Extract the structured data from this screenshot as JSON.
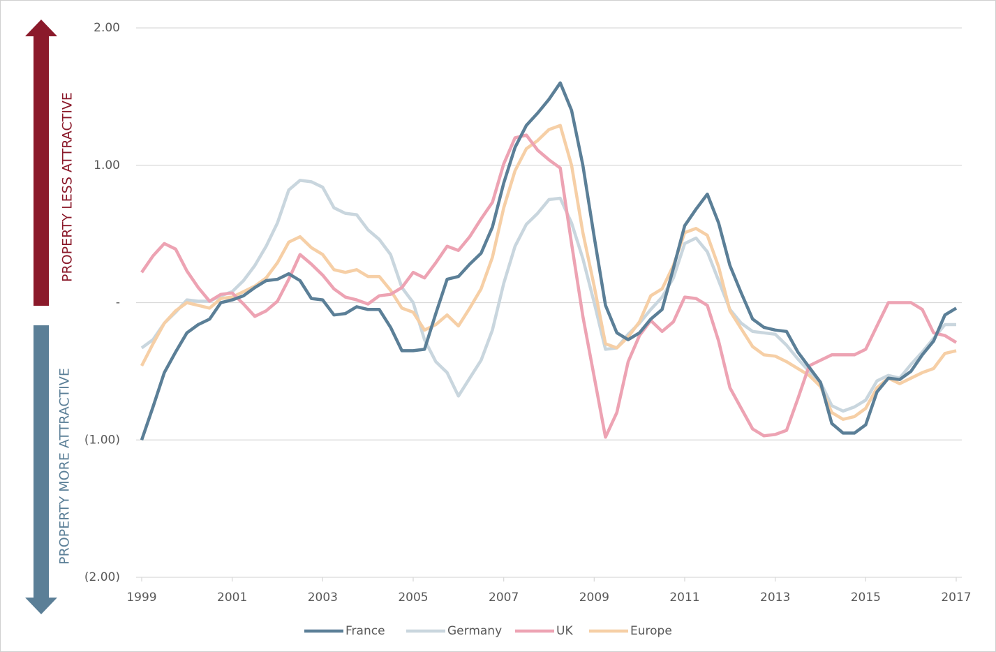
{
  "chart_data": {
    "type": "line",
    "annotations": [
      "PROPERTY LESS ATTRACTIVE",
      "PROPERTY MORE ATTRACTIVE"
    ],
    "x": [
      1999,
      1999.25,
      1999.5,
      1999.75,
      2000,
      2000.25,
      2000.5,
      2000.75,
      2001,
      2001.25,
      2001.5,
      2001.75,
      2002,
      2002.25,
      2002.5,
      2002.75,
      2003,
      2003.25,
      2003.5,
      2003.75,
      2004,
      2004.25,
      2004.5,
      2004.75,
      2005,
      2005.25,
      2005.5,
      2005.75,
      2006,
      2006.25,
      2006.5,
      2006.75,
      2007,
      2007.25,
      2007.5,
      2007.75,
      2008,
      2008.25,
      2008.5,
      2008.75,
      2009,
      2009.25,
      2009.5,
      2009.75,
      2010,
      2010.25,
      2010.5,
      2010.75,
      2011,
      2011.25,
      2011.5,
      2011.75,
      2012,
      2012.25,
      2012.5,
      2012.75,
      2013,
      2013.25,
      2013.5,
      2013.75,
      2014,
      2014.25,
      2014.5,
      2014.75,
      2015,
      2015.25,
      2015.5,
      2015.75,
      2016,
      2016.25,
      2016.5,
      2016.75,
      2017
    ],
    "xlim": [
      1999,
      2017
    ],
    "xticks": [
      1999,
      2001,
      2003,
      2005,
      2007,
      2009,
      2011,
      2013,
      2015,
      2017
    ],
    "ylim": [
      -2,
      2
    ],
    "yticks": [
      {
        "value": 2,
        "label": "2.00"
      },
      {
        "value": 1,
        "label": "1.00"
      },
      {
        "value": 0,
        "label": "-"
      },
      {
        "value": -1,
        "label": "(1.00)"
      },
      {
        "value": -2,
        "label": "(2.00)"
      }
    ],
    "grid": true,
    "legend": "bottom",
    "series": [
      {
        "name": "France",
        "color": "#5b7f97",
        "values": [
          -1.0,
          -0.76,
          -0.51,
          -0.36,
          -0.22,
          -0.16,
          -0.12,
          0.0,
          0.02,
          0.05,
          0.11,
          0.16,
          0.17,
          0.21,
          0.16,
          0.03,
          0.02,
          -0.09,
          -0.08,
          -0.03,
          -0.05,
          -0.05,
          -0.18,
          -0.35,
          -0.35,
          -0.34,
          -0.08,
          0.17,
          0.19,
          0.28,
          0.36,
          0.55,
          0.87,
          1.13,
          1.29,
          1.38,
          1.48,
          1.6,
          1.4,
          1.0,
          0.48,
          -0.02,
          -0.22,
          -0.27,
          -0.22,
          -0.12,
          -0.05,
          0.25,
          0.56,
          0.68,
          0.79,
          0.58,
          0.27,
          0.07,
          -0.12,
          -0.18,
          -0.2,
          -0.21,
          -0.36,
          -0.47,
          -0.58,
          -0.88,
          -0.95,
          -0.95,
          -0.89,
          -0.65,
          -0.55,
          -0.56,
          -0.5,
          -0.38,
          -0.28,
          -0.09,
          -0.04
        ]
      },
      {
        "name": "Germany",
        "color": "#c9d6de",
        "values": [
          -0.33,
          -0.27,
          -0.15,
          -0.07,
          0.02,
          0.01,
          0.01,
          0.05,
          0.08,
          0.16,
          0.27,
          0.41,
          0.58,
          0.82,
          0.89,
          0.88,
          0.84,
          0.69,
          0.65,
          0.64,
          0.53,
          0.46,
          0.35,
          0.11,
          0.0,
          -0.27,
          -0.43,
          -0.51,
          -0.68,
          -0.55,
          -0.42,
          -0.2,
          0.14,
          0.41,
          0.57,
          0.65,
          0.75,
          0.76,
          0.58,
          0.32,
          0.0,
          -0.34,
          -0.33,
          -0.23,
          -0.15,
          -0.05,
          0.04,
          0.18,
          0.43,
          0.47,
          0.37,
          0.16,
          -0.05,
          -0.15,
          -0.21,
          -0.22,
          -0.23,
          -0.31,
          -0.41,
          -0.5,
          -0.58,
          -0.75,
          -0.79,
          -0.76,
          -0.71,
          -0.57,
          -0.53,
          -0.55,
          -0.45,
          -0.36,
          -0.26,
          -0.16,
          -0.16
        ]
      },
      {
        "name": "UK",
        "color": "#eda3b3",
        "values": [
          0.22,
          0.34,
          0.43,
          0.39,
          0.23,
          0.11,
          0.01,
          0.06,
          0.07,
          -0.01,
          -0.1,
          -0.06,
          0.01,
          0.17,
          0.35,
          0.28,
          0.2,
          0.1,
          0.04,
          0.02,
          -0.01,
          0.05,
          0.06,
          0.11,
          0.22,
          0.18,
          0.29,
          0.41,
          0.38,
          0.48,
          0.61,
          0.73,
          1.01,
          1.2,
          1.22,
          1.11,
          1.04,
          0.98,
          0.43,
          -0.1,
          -0.54,
          -0.98,
          -0.8,
          -0.43,
          -0.24,
          -0.13,
          -0.21,
          -0.14,
          0.04,
          0.03,
          -0.02,
          -0.28,
          -0.62,
          -0.77,
          -0.92,
          -0.97,
          -0.96,
          -0.93,
          -0.7,
          -0.46,
          -0.42,
          -0.38,
          -0.38,
          -0.38,
          -0.34,
          -0.17,
          0.0,
          0.0,
          0.0,
          -0.05,
          -0.22,
          -0.24,
          -0.29
        ]
      },
      {
        "name": "Europe",
        "color": "#f6cfa6",
        "values": [
          -0.46,
          -0.3,
          -0.15,
          -0.06,
          0.0,
          -0.02,
          -0.04,
          0.03,
          0.04,
          0.08,
          0.12,
          0.18,
          0.29,
          0.44,
          0.48,
          0.4,
          0.35,
          0.24,
          0.22,
          0.24,
          0.19,
          0.19,
          0.09,
          -0.04,
          -0.07,
          -0.2,
          -0.16,
          -0.09,
          -0.17,
          -0.04,
          0.1,
          0.33,
          0.69,
          0.96,
          1.12,
          1.18,
          1.26,
          1.29,
          1.0,
          0.51,
          0.12,
          -0.3,
          -0.33,
          -0.25,
          -0.14,
          0.05,
          0.1,
          0.27,
          0.51,
          0.54,
          0.49,
          0.26,
          -0.06,
          -0.19,
          -0.32,
          -0.38,
          -0.39,
          -0.43,
          -0.48,
          -0.53,
          -0.61,
          -0.8,
          -0.85,
          -0.83,
          -0.77,
          -0.62,
          -0.55,
          -0.59,
          -0.55,
          -0.51,
          -0.48,
          -0.37,
          -0.35
        ]
      }
    ]
  }
}
